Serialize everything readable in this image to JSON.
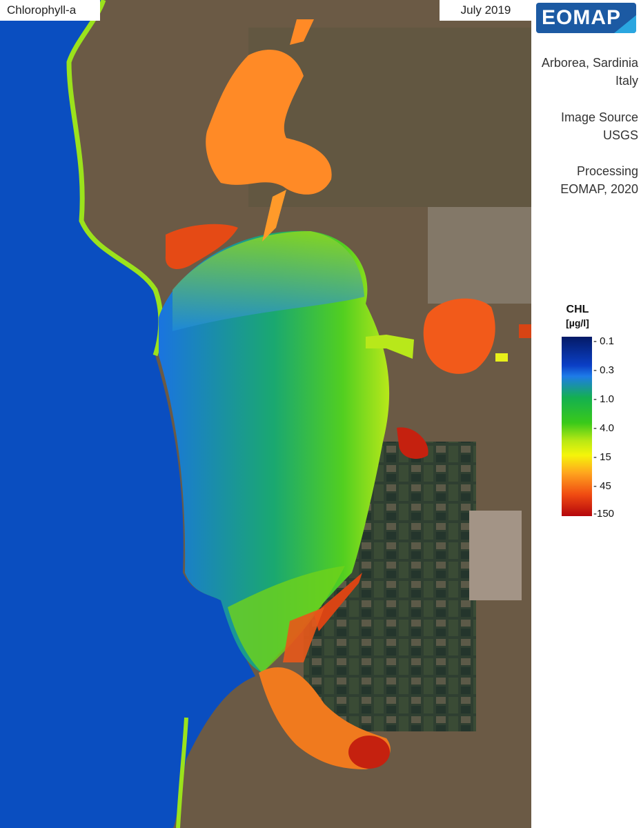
{
  "header": {
    "parameter": "Chlorophyll-a",
    "date": "July 2019"
  },
  "logo": {
    "text": "EOMAP",
    "colors": {
      "primary": "#1c5aa3",
      "accent": "#2aa6e0"
    }
  },
  "info": {
    "location": [
      "Arborea, Sardinia",
      "Italy"
    ],
    "source": [
      "Image Source",
      "USGS"
    ],
    "processing": [
      "Processing",
      "EOMAP, 2020"
    ]
  },
  "legend": {
    "title": "CHL",
    "unit": "[µg/l]",
    "ticks": [
      "- 0.1",
      "- 0.3",
      "- 1.0",
      "- 4.0",
      "- 15",
      "- 45",
      "-150"
    ]
  },
  "map": {
    "colors": {
      "deep_water": "#0a4ec0",
      "land": "#6b5a45",
      "low_chl": "#1e7be8",
      "mid_chl": "#42c81a",
      "high_chl": "#ff8a1e",
      "very_high_chl": "#c5210f"
    }
  }
}
